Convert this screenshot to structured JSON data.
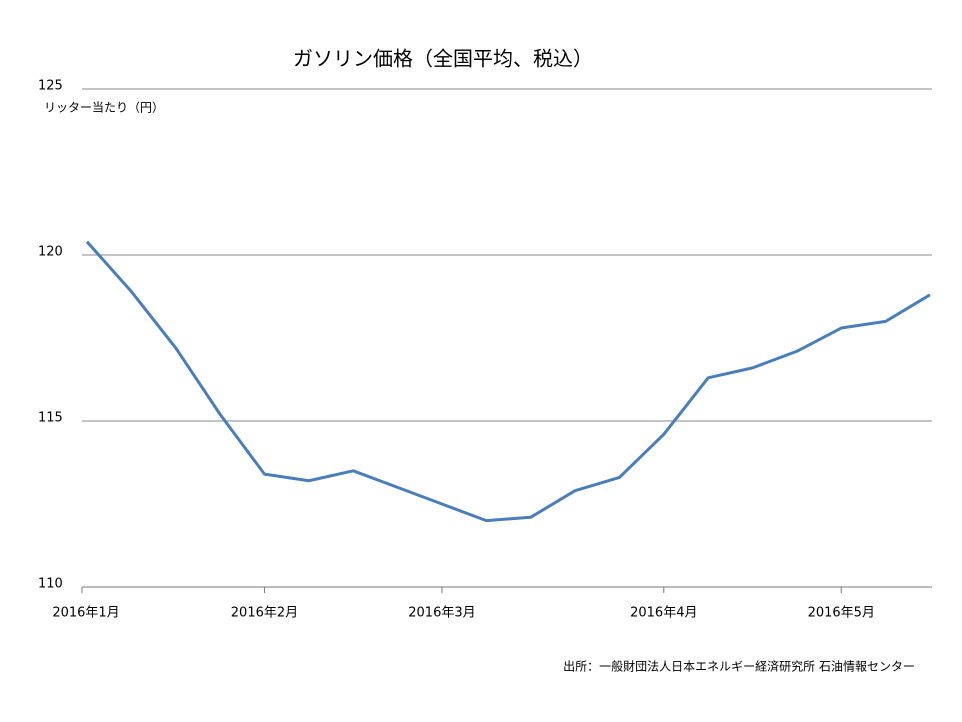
{
  "chart_data": {
    "type": "line",
    "title": "ガソリン価格（全国平均、税込）",
    "y_label": "リッター当たり（円）",
    "source": "出所：一般財団法人日本エネルギー経済研究所 石油情報センター",
    "categories": [
      "2016年1月",
      null,
      null,
      null,
      "2016年2月",
      null,
      null,
      null,
      "2016年3月",
      null,
      null,
      null,
      null,
      "2016年4月",
      null,
      null,
      null,
      "2016年5月",
      null,
      null
    ],
    "series": [
      {
        "name": "ガソリン価格",
        "color": "#4a7ebb",
        "values": [
          120.4,
          118.9,
          117.2,
          115.2,
          113.4,
          113.2,
          113.5,
          113.0,
          112.5,
          112.0,
          112.1,
          112.9,
          113.3,
          114.6,
          116.3,
          116.6,
          117.1,
          117.8,
          118.0,
          118.8
        ]
      }
    ],
    "ylim": [
      110,
      125
    ],
    "yticks": [
      110,
      115,
      120,
      125
    ],
    "grid": true
  }
}
